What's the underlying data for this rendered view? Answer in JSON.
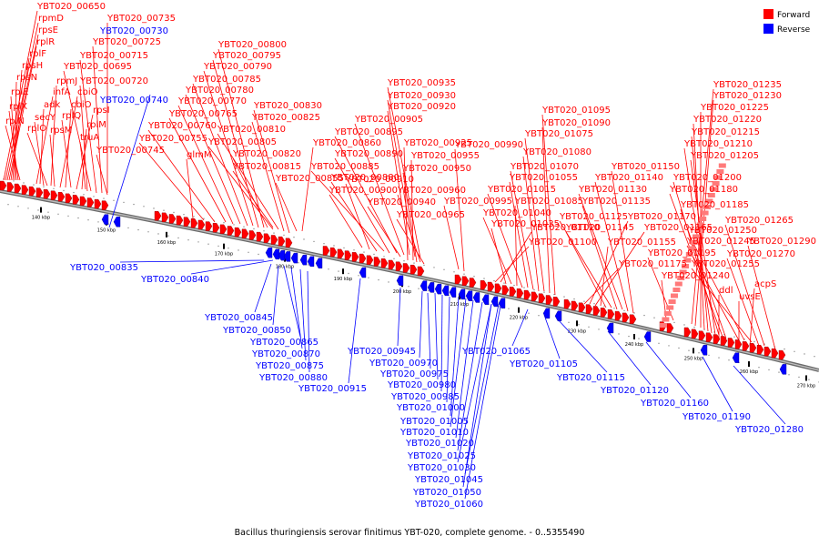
{
  "legend": {
    "forward_label": "Forward",
    "reverse_label": "Reverse",
    "forward_color": "#ff0000",
    "reverse_color": "#0000ff"
  },
  "caption": "Bacillus thuringiensis serovar finitimus YBT-020, complete genome. - 0..5355490",
  "axis_ticks": [
    "140 kbp",
    "150 kbp",
    "160 kbp",
    "170 kbp",
    "180 kbp",
    "190 kbp",
    "200 kbp",
    "210 kbp",
    "220 kbp",
    "230 kbp",
    "240 kbp",
    "250 kbp",
    "260 kbp",
    "270 kbp"
  ],
  "forward_labels": [
    "YBT020_00650",
    "rpmD",
    "rpsE",
    "rplR",
    "rplF",
    "rpsH",
    "rpsN",
    "rplE",
    "rplX",
    "rplN",
    "YBT020_00735",
    "YBT020_00725",
    "YBT020_00715",
    "YBT020_00695",
    "YBT020_00720",
    "infA",
    "adk",
    "secY",
    "rplO",
    "rpmJ",
    "rpsM",
    "cbiO",
    "cbiO",
    "rplQ",
    "rpsI",
    "rplM",
    "truA",
    "YBT020_00745",
    "YBT020_00800",
    "YBT020_00795",
    "YBT020_00790",
    "YBT020_00785",
    "YBT020_00780",
    "YBT020_00770",
    "YBT020_00765",
    "YBT020_00760",
    "YBT020_00755",
    "glmM",
    "YBT020_00830",
    "YBT020_00825",
    "YBT020_00810",
    "YBT020_00805",
    "YBT020_00820",
    "YBT020_00815",
    "YBT020_00860",
    "YBT020_00855",
    "YBT020_00935",
    "YBT020_00930",
    "YBT020_00920",
    "YBT020_00905",
    "YBT020_00895",
    "YBT020_00890",
    "YBT020_00885",
    "YBT020_00880",
    "YBT020_00910",
    "YBT020_00900",
    "YBT020_00925",
    "YBT020_00955",
    "YBT020_00950",
    "YBT020_00960",
    "YBT020_00940",
    "YBT020_00965",
    "YBT020_00990",
    "YBT020_00995",
    "YBT020_01095",
    "YBT020_01090",
    "YBT020_01075",
    "YBT020_01080",
    "YBT020_01070",
    "YBT020_01055",
    "YBT020_01015",
    "YBT020_01085",
    "YBT020_01040",
    "YBT020_01035",
    "YBT020_01110",
    "YBT020_01100",
    "YBT020_01150",
    "YBT020_01140",
    "YBT020_01130",
    "YBT020_01135",
    "YBT020_01125",
    "YBT020_01145",
    "YBT020_01155",
    "YBT020_01165",
    "YBT020_01170",
    "YBT020_01175",
    "YBT020_01235",
    "YBT020_01230",
    "YBT020_01225",
    "YBT020_01220",
    "YBT020_01215",
    "YBT020_01210",
    "YBT020_01205",
    "YBT020_01200",
    "YBT020_01180",
    "YBT020_01185",
    "YBT020_01195",
    "YBT020_01250",
    "YBT020_01245",
    "YBT020_01255",
    "YBT020_01240",
    "YBT020_01265",
    "YBT020_01290",
    "YBT020_01270",
    "ddl",
    "acpS",
    "uvsE"
  ],
  "reverse_labels": [
    "YBT020_00730",
    "YBT020_00740",
    "YBT020_00835",
    "YBT020_00840",
    "YBT020_00845",
    "YBT020_00850",
    "YBT020_00865",
    "YBT020_00870",
    "YBT020_00875",
    "YBT020_00880",
    "YBT020_00915",
    "YBT020_00945",
    "YBT020_00970",
    "YBT020_00975",
    "YBT020_00980",
    "YBT020_00985",
    "YBT020_01000",
    "YBT020_01005",
    "YBT020_01010",
    "YBT020_01020",
    "YBT020_01025",
    "YBT020_01030",
    "YBT020_01045",
    "YBT020_01050",
    "YBT020_01060",
    "YBT020_01065",
    "YBT020_01105",
    "YBT020_01115",
    "YBT020_01120",
    "YBT020_01160",
    "YBT020_01190",
    "YBT020_01280"
  ]
}
